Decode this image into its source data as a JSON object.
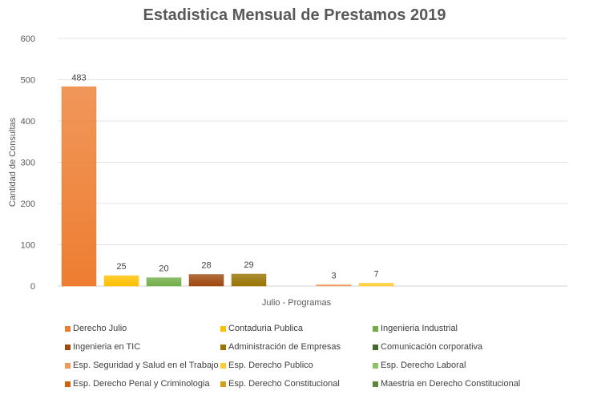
{
  "chart_data": {
    "type": "bar",
    "title": "Estadistica Mensual de Prestamos 2019",
    "xlabel": "Julio - Programas",
    "ylabel": "Cantidad de Consultas",
    "ylim": [
      0,
      600
    ],
    "yticks": [
      "0",
      "100",
      "200",
      "300",
      "400",
      "500",
      "600"
    ],
    "grid": true,
    "legend_position": "bottom",
    "categories": [
      "Julio"
    ],
    "series": [
      {
        "name": "Derecho Julio",
        "values": [
          483
        ],
        "color": "#ED7D31"
      },
      {
        "name": "Contaduria Publica",
        "values": [
          25
        ],
        "color": "#FFC000"
      },
      {
        "name": "Ingenieria Industrial",
        "values": [
          20
        ],
        "color": "#70AD47"
      },
      {
        "name": "Ingenieria en TIC",
        "values": [
          28
        ],
        "color": "#9E480E"
      },
      {
        "name": "Administración de Empresas",
        "values": [
          29
        ],
        "color": "#997300"
      },
      {
        "name": "Comunicación corporativa",
        "values": [
          null
        ],
        "color": "#43682B"
      },
      {
        "name": "Esp. Seguridad y Salud en el Trabajo",
        "values": [
          3
        ],
        "color": "#F1975A"
      },
      {
        "name": "Esp. Derecho Publico",
        "values": [
          7
        ],
        "color": "#FFCD33"
      },
      {
        "name": "Esp. Derecho Laboral",
        "values": [
          null
        ],
        "color": "#8CC168"
      },
      {
        "name": "Esp. Derecho Penal y Criminologia",
        "values": [
          null
        ],
        "color": "#D26012"
      },
      {
        "name": "Esp. Derecho Constitucional",
        "values": [
          null
        ],
        "color": "#D4A017"
      },
      {
        "name": "Maestria en Derecho Constitucional",
        "values": [
          null
        ],
        "color": "#5B8A3A"
      }
    ]
  }
}
